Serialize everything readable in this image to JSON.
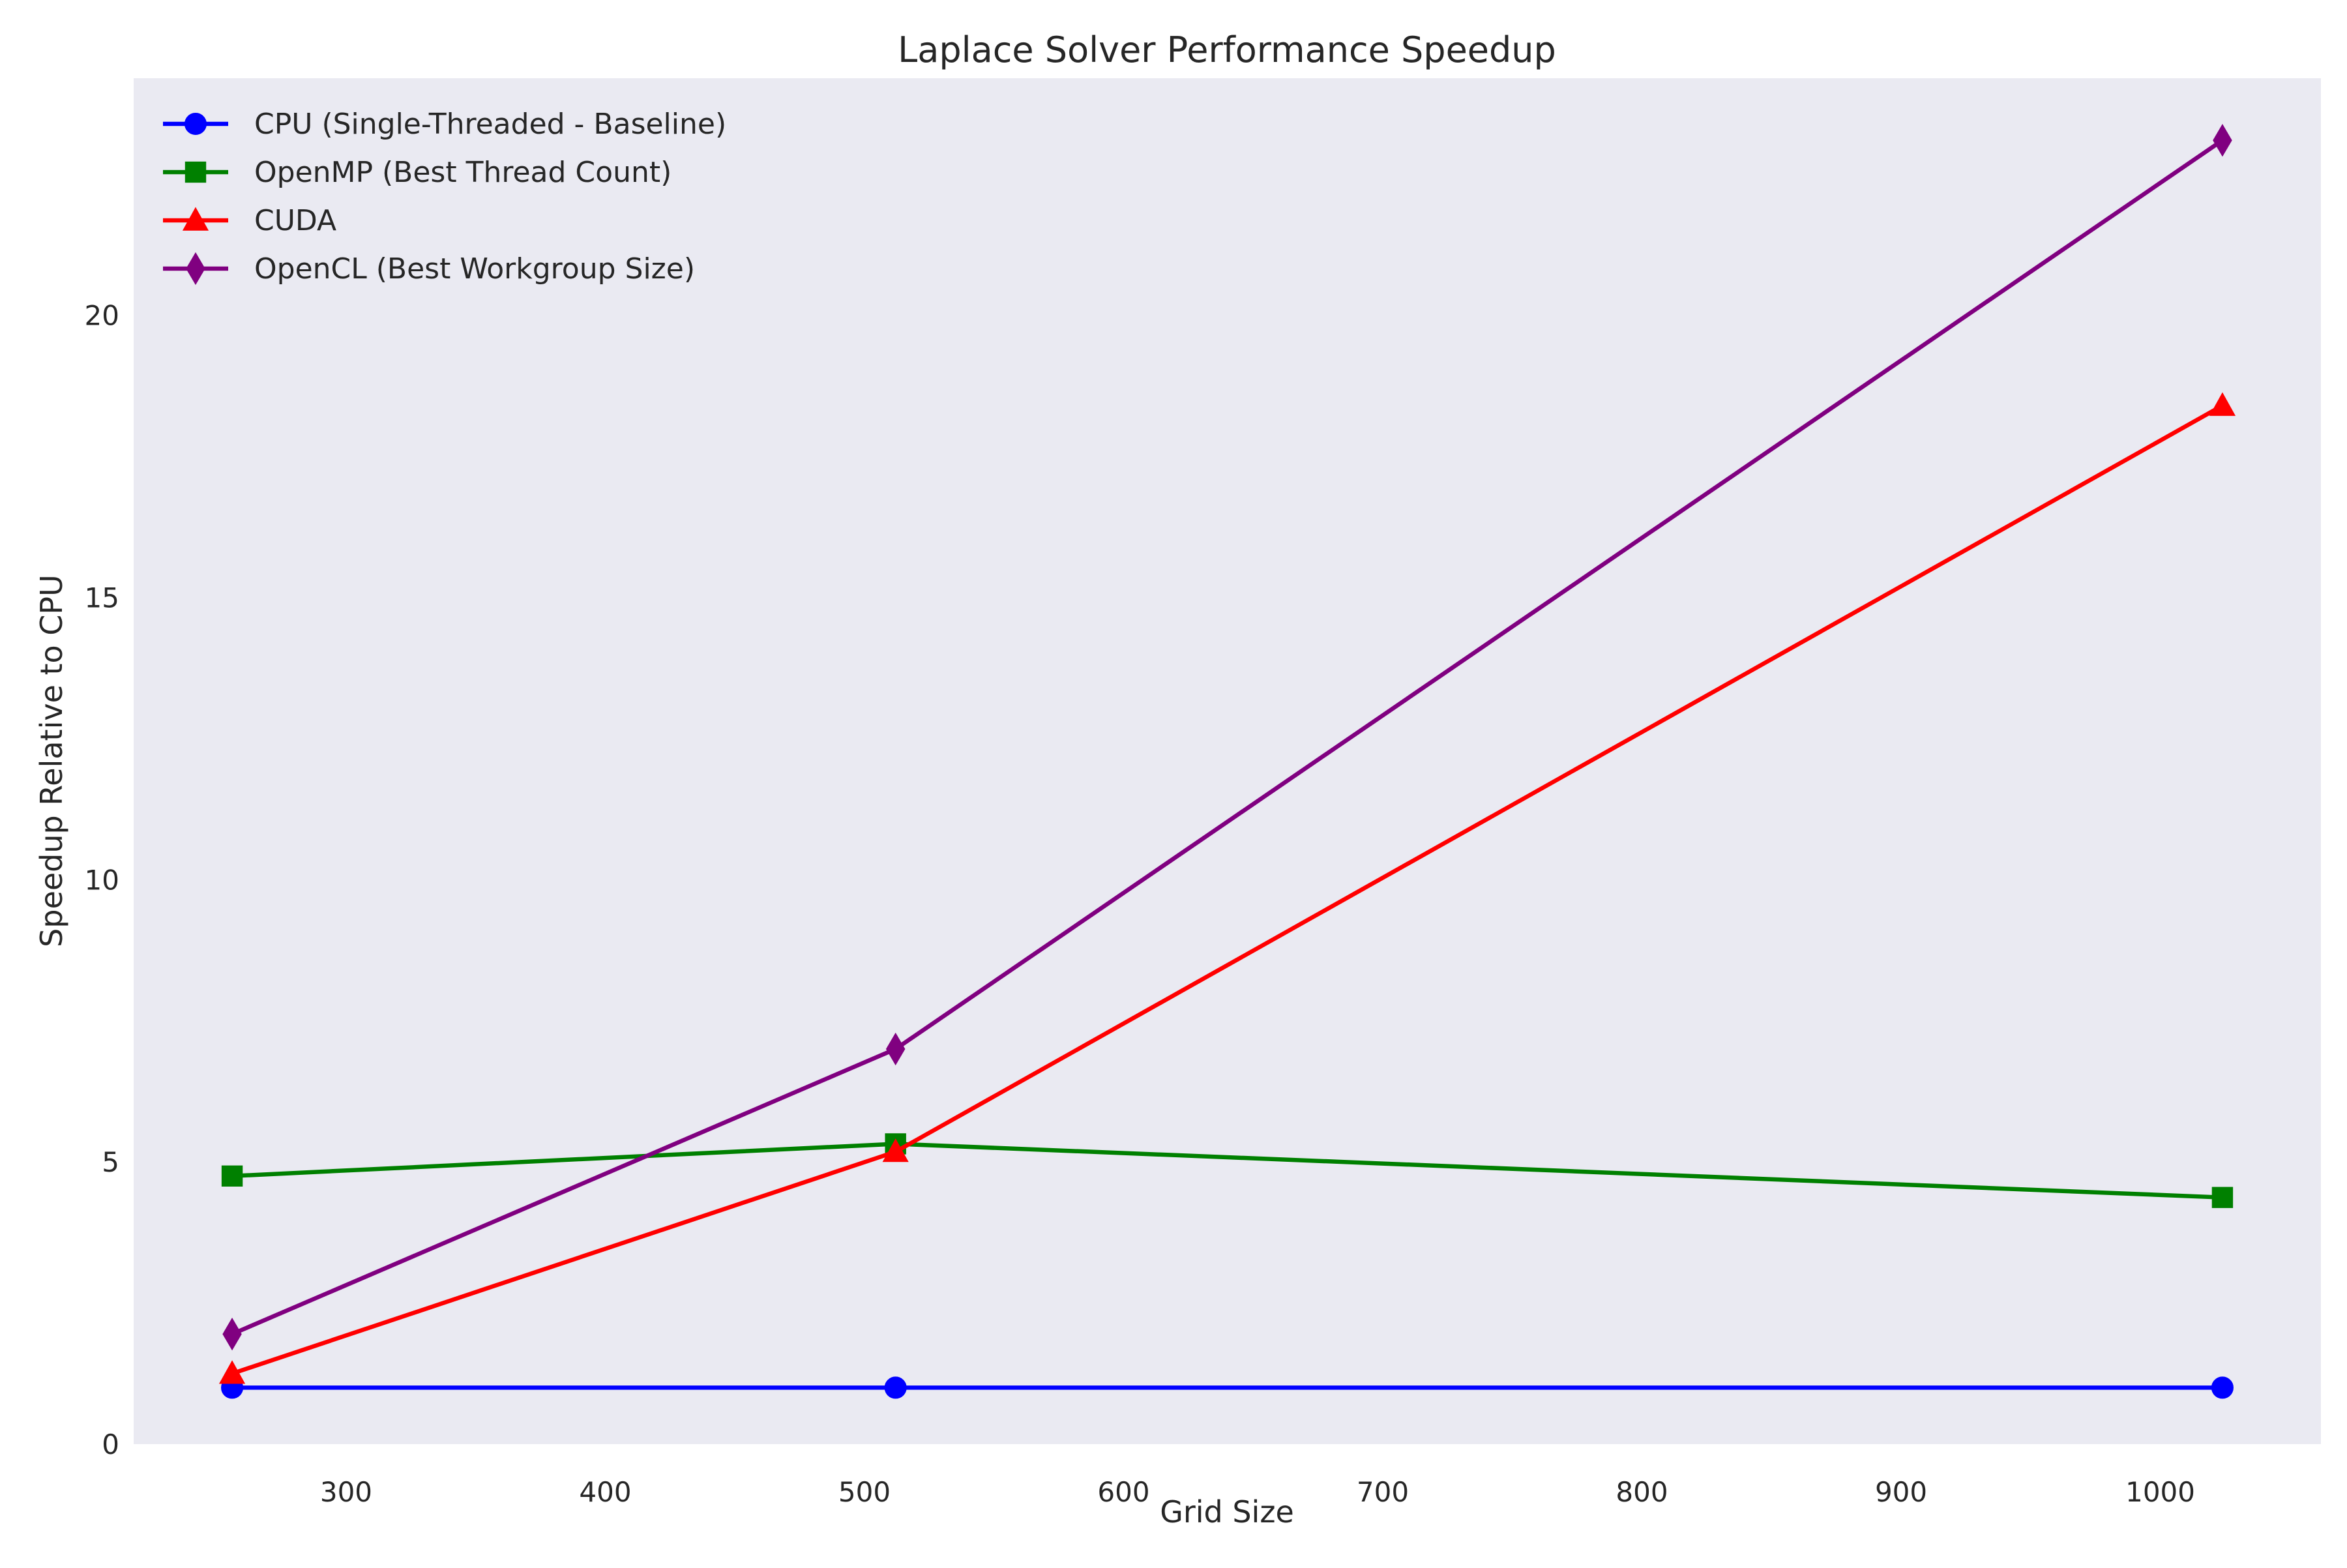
{
  "chart_data": {
    "type": "line",
    "title": "Laplace Solver Performance Speedup",
    "xlabel": "Grid Size",
    "ylabel": "Speedup Relative to CPU",
    "x": [
      256,
      512,
      1024
    ],
    "xlim": [
      218,
      1062
    ],
    "ylim": [
      0,
      24.2
    ],
    "x_ticks": [
      300,
      400,
      500,
      600,
      700,
      800,
      900,
      1000
    ],
    "y_ticks": [
      0,
      5,
      10,
      15,
      20
    ],
    "grid": false,
    "background": "#eaeaf2",
    "legend_position": "upper-left",
    "series": [
      {
        "name": "CPU (Single-Threaded - Baseline)",
        "color": "#0000ff",
        "marker": "circle",
        "values": [
          1.0,
          1.0,
          1.0
        ]
      },
      {
        "name": "OpenMP (Best Thread Count)",
        "color": "#008000",
        "marker": "square",
        "values": [
          4.75,
          5.32,
          4.37
        ]
      },
      {
        "name": "CUDA",
        "color": "#ff0000",
        "marker": "triangle",
        "values": [
          1.25,
          5.18,
          18.4
        ]
      },
      {
        "name": "OpenCL (Best Workgroup Size)",
        "color": "#800080",
        "marker": "diamond",
        "values": [
          1.95,
          7.0,
          23.1
        ]
      }
    ]
  }
}
